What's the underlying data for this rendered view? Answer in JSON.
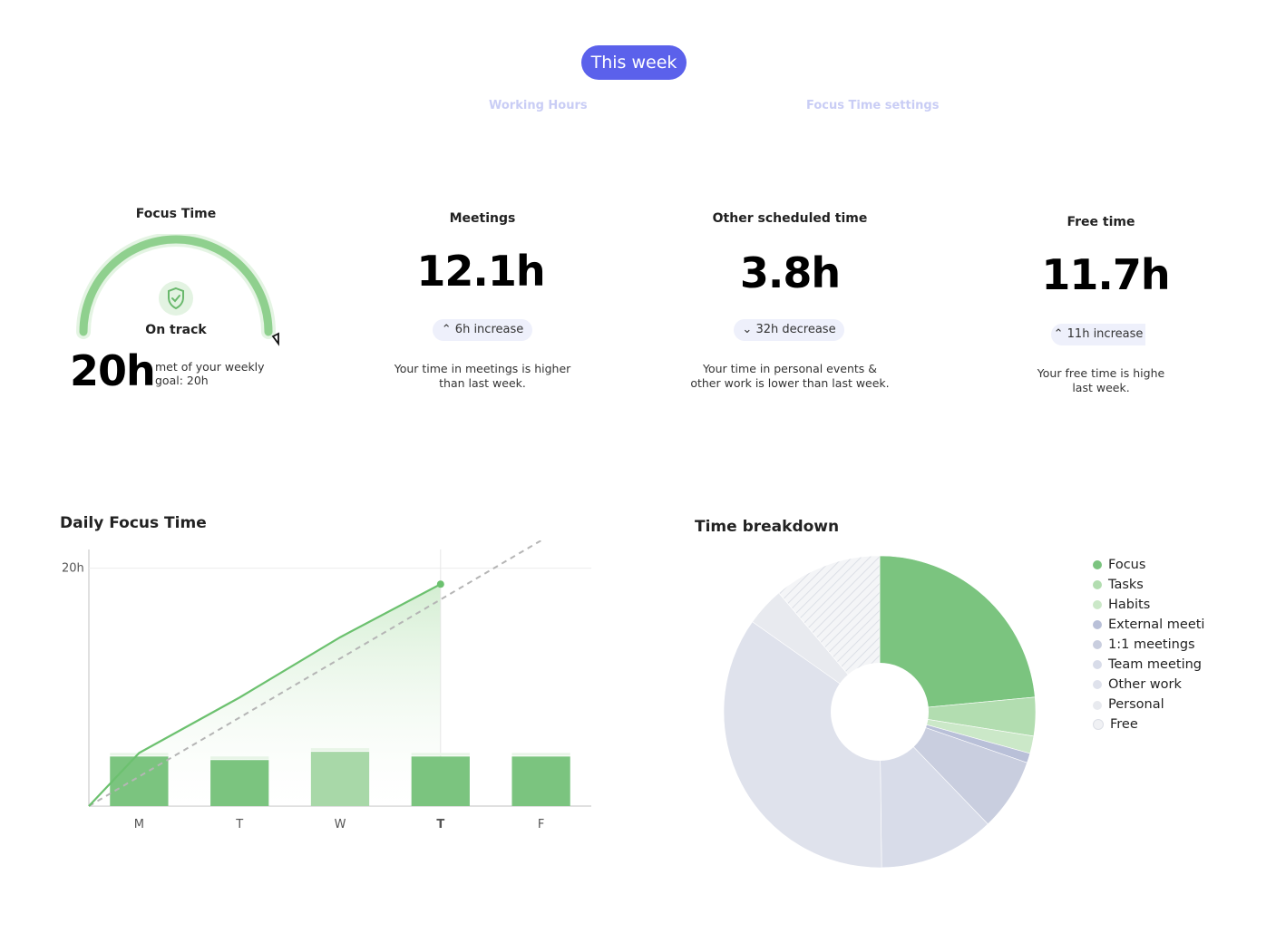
{
  "header": {
    "period_button": "This week",
    "links": [
      "Working Hours",
      "Focus Time settings"
    ]
  },
  "focus_card": {
    "title": "Focus Time",
    "status": "On track",
    "value": "20h",
    "goal_text_line1": "met of your weekly",
    "goal_text_line2": "goal: 20h",
    "progress_fraction": 1.0
  },
  "meetings_card": {
    "title": "Meetings",
    "value": "12.1h",
    "badge": "6h increase",
    "badge_icon": "double-chevron-up-icon",
    "desc_line1": "Your time in meetings is higher",
    "desc_line2": "than last week."
  },
  "other_card": {
    "title": "Other scheduled time",
    "value": "3.8h",
    "badge": "32h decrease",
    "badge_icon": "double-chevron-down-icon",
    "desc_line1": "Your time in personal events &",
    "desc_line2": "other work is lower than last week."
  },
  "free_card": {
    "title": "Free time",
    "value": "11.7h",
    "badge": "11h increase",
    "badge_icon": "double-chevron-up-icon",
    "desc_line1": "Your free time is highe",
    "desc_line2": "last week."
  },
  "daily_focus": {
    "title": "Daily Focus Time"
  },
  "breakdown": {
    "title": "Time breakdown"
  },
  "chart_data": [
    {
      "type": "bar",
      "title": "Daily Focus Time",
      "categories": [
        "M",
        "T",
        "W",
        "T",
        "F"
      ],
      "highlight_category_index": 3,
      "y_tick_labels": [
        "20h"
      ],
      "ylim": [
        0,
        20
      ],
      "series": [
        {
          "values": [
            4.2,
            3.9,
            4.6,
            4.2,
            4.2
          ],
          "colors": [
            "#7bc47f",
            "#7bc47f",
            "#a8d8a8",
            "#7bc47f",
            "#7bc47f"
          ]
        }
      ],
      "cumulative_line": {
        "x_index": [
          -0.5,
          0,
          1,
          2,
          3
        ],
        "values": [
          0,
          4.5,
          9.2,
          14.3,
          18.8
        ],
        "color": "#6cc16f"
      },
      "goal_line": {
        "x_index": [
          -0.5,
          4
        ],
        "values": [
          0,
          22.5
        ],
        "color": "#b5b5b5",
        "dashed": true
      },
      "grid": false
    },
    {
      "type": "pie",
      "title": "Time breakdown",
      "donut": true,
      "legend_position": "right",
      "slices": [
        {
          "label": "Focus",
          "value": 23.5,
          "color": "#7bc47f"
        },
        {
          "label": "Tasks",
          "value": 4.0,
          "color": "#b2ddb0"
        },
        {
          "label": "Habits",
          "value": 1.8,
          "color": "#cbe8c8"
        },
        {
          "label": "External meeti",
          "value": 1.0,
          "color": "#b9c0d8"
        },
        {
          "label": "1:1 meetings",
          "value": 7.5,
          "color": "#c9cedf"
        },
        {
          "label": "Team meeting",
          "value": 12.0,
          "color": "#d8dce9"
        },
        {
          "label": "Other work",
          "value": 35.0,
          "color": "#dfe2ec"
        },
        {
          "label": "Personal",
          "value": 4.0,
          "color": "#e8eaef"
        },
        {
          "label": "Free",
          "value": 11.2,
          "color": "#f2f3f6",
          "hatched": true
        }
      ]
    }
  ]
}
